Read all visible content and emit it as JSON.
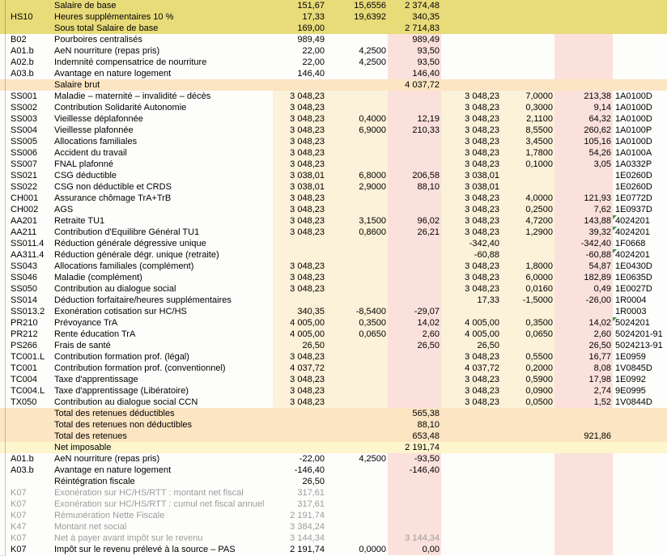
{
  "colors": {
    "highlight_yellow": "#e8db7a",
    "section_peach": "#fce5c2",
    "net_pale_yellow": "#fdf5cc",
    "numeric_cream": "#fcf1d9",
    "amount_pink": "#fbe1dc",
    "row_white": "#fdfdfb",
    "muted_text": "#9c9c9c",
    "marker_green": "#2f9e3c"
  },
  "table": {
    "columns": [
      "code",
      "libelle",
      "base",
      "taux",
      "montant",
      "base_patronale",
      "taux_patronal",
      "montant_patronal",
      "code_dsn"
    ],
    "rows": [
      {
        "code": "",
        "label": "Salaire de base",
        "base": "151,67",
        "rate": "15,6556",
        "amount": "2 374,48",
        "style": "khaki"
      },
      {
        "code": "HS10",
        "label": "Heures supplémentaires 10 %",
        "base": "17,33",
        "rate": "19,6392",
        "amount": "340,35",
        "style": "khaki"
      },
      {
        "code": "",
        "label": "Sous total Salaire de base",
        "base": "169,00",
        "amount": "2 714,83",
        "style": "khaki"
      },
      {
        "code": "B02",
        "label": "Pourboires centralisés",
        "base": "989,49",
        "amount": "989,49",
        "style": "plain"
      },
      {
        "code": "A01.b",
        "label": "AeN nourriture (repas pris)",
        "base": "22,00",
        "rate": "4,2500",
        "amount": "93,50",
        "style": "plain"
      },
      {
        "code": "A02.b",
        "label": "Indemnité compensatrice de nourriture",
        "base": "22,00",
        "rate": "4,2500",
        "amount": "93,50",
        "style": "plain"
      },
      {
        "code": "A03.b",
        "label": "Avantage en nature logement",
        "base": "146,40",
        "amount": "146,40",
        "style": "plain"
      },
      {
        "code": "",
        "label": "Salaire brut",
        "amount": "4 037,72",
        "style": "brut"
      },
      {
        "code": "SS001",
        "label": "Maladie – maternité – invalidité – décès",
        "base": "3 048,23",
        "base_er": "3 048,23",
        "rate_er": "7,0000",
        "amount_er": "213,38",
        "dsn": "1A0100D",
        "style": "cotis"
      },
      {
        "code": "SS002",
        "label": "Contribution Solidarité Autonomie",
        "base": "3 048,23",
        "base_er": "3 048,23",
        "rate_er": "0,3000",
        "amount_er": "9,14",
        "dsn": "1A0100D",
        "style": "cotis"
      },
      {
        "code": "SS003",
        "label": "Vieillesse déplafonnée",
        "base": "3 048,23",
        "rate": "0,4000",
        "amount": "12,19",
        "base_er": "3 048,23",
        "rate_er": "2,1100",
        "amount_er": "64,32",
        "dsn": "1A0100D",
        "style": "cotis"
      },
      {
        "code": "SS004",
        "label": "Vieillesse plafonnée",
        "base": "3 048,23",
        "rate": "6,9000",
        "amount": "210,33",
        "base_er": "3 048,23",
        "rate_er": "8,5500",
        "amount_er": "260,62",
        "dsn": "1A0100P",
        "style": "cotis"
      },
      {
        "code": "SS005",
        "label": "Allocations familiales",
        "base": "3 048,23",
        "base_er": "3 048,23",
        "rate_er": "3,4500",
        "amount_er": "105,16",
        "dsn": "1A0100D",
        "style": "cotis"
      },
      {
        "code": "SS006",
        "label": "Accident du travail",
        "base": "3 048,23",
        "base_er": "3 048,23",
        "rate_er": "1,7800",
        "amount_er": "54,26",
        "dsn": "1A0100A",
        "style": "cotis"
      },
      {
        "code": "SS007",
        "label": "FNAL plafonné",
        "base": "3 048,23",
        "base_er": "3 048,23",
        "rate_er": "0,1000",
        "amount_er": "3,05",
        "dsn": "1A0332P",
        "style": "cotis"
      },
      {
        "code": "SS021",
        "label": "CSG déductible",
        "base": "3 038,01",
        "rate": "6,8000",
        "amount": "206,58",
        "base_er": "3 038,01",
        "dsn": "1E0260D",
        "style": "cotis"
      },
      {
        "code": "SS022",
        "label": "CSG non déductible et CRDS",
        "base": "3 038,01",
        "rate": "2,9000",
        "amount": "88,10",
        "base_er": "3 038,01",
        "dsn": "1E0260D",
        "style": "cotis"
      },
      {
        "code": "CH001",
        "label": "Assurance chômage TrA+TrB",
        "base": "3 048,23",
        "base_er": "3 048,23",
        "rate_er": "4,0000",
        "amount_er": "121,93",
        "dsn": "1E0772D",
        "style": "cotis"
      },
      {
        "code": "CH002",
        "label": "AGS",
        "base": "3 048,23",
        "base_er": "3 048,23",
        "rate_er": "0,2500",
        "amount_er": "7,62",
        "dsn": "1E0937D",
        "style": "cotis"
      },
      {
        "code": "AA201",
        "label": "Retraite TU1",
        "base": "3 048,23",
        "rate": "3,1500",
        "amount": "96,02",
        "base_er": "3 048,23",
        "rate_er": "4,7200",
        "amount_er": "143,88",
        "dsn": "4024201",
        "marker": true,
        "style": "cotis"
      },
      {
        "code": "AA211",
        "label": "Contribution d'Equilibre Général TU1",
        "base": "3 048,23",
        "rate": "0,8600",
        "amount": "26,21",
        "base_er": "3 048,23",
        "rate_er": "1,2900",
        "amount_er": "39,32",
        "dsn": "4024201",
        "marker": true,
        "style": "cotis"
      },
      {
        "code": "SS011.4",
        "label": "Réduction générale dégressive unique",
        "base_er": "-342,40",
        "amount_er": "-342,40",
        "dsn": "1F0668",
        "style": "cotis"
      },
      {
        "code": "AA311.4",
        "label": "Réduction générale dégr. unique (retraite)",
        "base_er": "-60,88",
        "amount_er": "-60,88",
        "dsn": "4024201",
        "marker": true,
        "style": "cotis"
      },
      {
        "code": "SS043",
        "label": "Allocations familiales (complément)",
        "base": "3 048,23",
        "base_er": "3 048,23",
        "rate_er": "1,8000",
        "amount_er": "54,87",
        "dsn": "1E0430D",
        "style": "cotis"
      },
      {
        "code": "SS046",
        "label": "Maladie (complément)",
        "base": "3 048,23",
        "base_er": "3 048,23",
        "rate_er": "6,0000",
        "amount_er": "182,89",
        "dsn": "1E0635D",
        "style": "cotis"
      },
      {
        "code": "SS050",
        "label": "Contribution au dialogue social",
        "base": "3 048,23",
        "base_er": "3 048,23",
        "rate_er": "0,0160",
        "amount_er": "0,49",
        "dsn": "1E0027D",
        "style": "cotis"
      },
      {
        "code": "SS014",
        "label": "Déduction forfaitaire/heures supplémentaires",
        "base_er": "17,33",
        "rate_er": "-1,5000",
        "amount_er": "-26,00",
        "dsn": "1R0004",
        "style": "cotis"
      },
      {
        "code": "SS013.2",
        "label": "Exonération cotisation sur HC/HS",
        "base": "340,35",
        "rate": "-8,5400",
        "amount": "-29,07",
        "dsn": "1R0003",
        "style": "cotis"
      },
      {
        "code": "PR210",
        "label": "Prévoyance TrA",
        "base": "4 005,00",
        "rate": "0,3500",
        "amount": "14,02",
        "base_er": "4 005,00",
        "rate_er": "0,3500",
        "amount_er": "14,02",
        "dsn": "5024201",
        "marker": true,
        "style": "cotis"
      },
      {
        "code": "PR212",
        "label": "Rente éducation TrA",
        "base": "4 005,00",
        "rate": "0,0650",
        "amount": "2,60",
        "base_er": "4 005,00",
        "rate_er": "0,0650",
        "amount_er": "2,60",
        "dsn": "5024201-91",
        "style": "cotis"
      },
      {
        "code": "PS266",
        "label": "Frais de santé",
        "base": "26,50",
        "amount": "26,50",
        "base_er": "26,50",
        "amount_er": "26,50",
        "dsn": "5024213-91",
        "style": "cotis"
      },
      {
        "code": "TC001.L",
        "label": "Contribution formation prof. (légal)",
        "base": "3 048,23",
        "base_er": "3 048,23",
        "rate_er": "0,5500",
        "amount_er": "16,77",
        "dsn": "1E0959",
        "style": "cotis"
      },
      {
        "code": "TC001",
        "label": "Contribution formation prof. (conventionnel)",
        "base": "4 037,72",
        "base_er": "4 037,72",
        "rate_er": "0,2000",
        "amount_er": "8,08",
        "dsn": "1V0845D",
        "style": "cotis"
      },
      {
        "code": "TC004",
        "label": "Taxe d'apprentissage",
        "base": "3 048,23",
        "base_er": "3 048,23",
        "rate_er": "0,5900",
        "amount_er": "17,98",
        "dsn": "1E0992",
        "style": "cotis"
      },
      {
        "code": "TC004.L",
        "label": "Taxe d'apprentissage (Libératoire)",
        "base": "3 048,23",
        "base_er": "3 048,23",
        "rate_er": "0,0900",
        "amount_er": "2,74",
        "dsn": "9E0995",
        "style": "cotis"
      },
      {
        "code": "TX050",
        "label": "Contribution au dialogue social CCN",
        "base": "3 048,23",
        "base_er": "3 048,23",
        "rate_er": "0,0500",
        "amount_er": "1,52",
        "dsn": "1V0844D",
        "style": "cotis"
      },
      {
        "code": "",
        "label": "Total des retenues déductibles",
        "amount": "565,38",
        "style": "total"
      },
      {
        "code": "",
        "label": "Total des retenues non déductibles",
        "amount": "88,10",
        "style": "total"
      },
      {
        "code": "",
        "label": "Total des retenues",
        "amount": "653,48",
        "amount_er": "921,86",
        "style": "total"
      },
      {
        "code": "",
        "label": "Net imposable",
        "amount": "2 191,74",
        "style": "netimp"
      },
      {
        "code": "A01.b",
        "label": "AeN nourriture (repas pris)",
        "base": "-22,00",
        "rate": "4,2500",
        "amount": "-93,50",
        "style": "plain"
      },
      {
        "code": "A03.b",
        "label": "Avantage en nature logement",
        "base": "-146,40",
        "amount": "-146,40",
        "style": "plain"
      },
      {
        "code": "",
        "label": "Réintégration fiscale",
        "base": "26,50",
        "style": "plain"
      },
      {
        "code": "K07",
        "label": "Exonération sur HC/HS/RTT : montant net fiscal",
        "base": "317,61",
        "style": "plain",
        "muted": true
      },
      {
        "code": "K07",
        "label": "Exonération sur HC/HS/RTT : cumul net fiscal annuel",
        "base": "317,61",
        "style": "plain",
        "muted": true
      },
      {
        "code": "K07",
        "label": "Rémunération Nette Fiscale",
        "base": "2 191,74",
        "style": "plain",
        "muted": true
      },
      {
        "code": "K47",
        "label": "Montant net social",
        "base": "3 384,24",
        "style": "plain",
        "muted": true
      },
      {
        "code": "K07",
        "label": "Net à payer avant impôt sur le revenu",
        "base": "3 144,34",
        "amount": "3 144,34",
        "style": "plain",
        "muted": true
      },
      {
        "code": "K07",
        "label": "Impôt sur le revenu prélevé à la source – PAS",
        "base": "2 191,74",
        "rate": "0,0000",
        "amount": "0,00",
        "style": "plain"
      }
    ]
  }
}
